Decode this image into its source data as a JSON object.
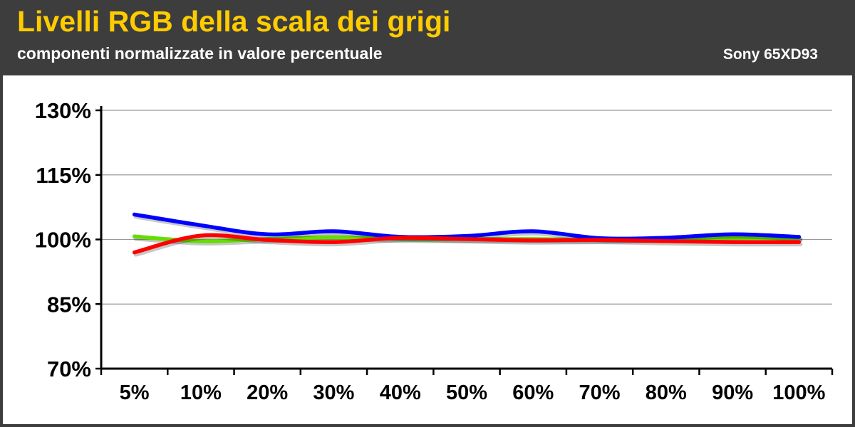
{
  "header": {
    "title": "Livelli RGB della scala dei grigi",
    "subtitle": "componenti normalizzate in valore percentuale",
    "model": "Sony 65XD93"
  },
  "colors": {
    "header_bg": "#3d3d3d",
    "title": "#ffcc00",
    "red": "#ff0000",
    "green": "#66dd00",
    "blue": "#0000ff",
    "grid": "#999999"
  },
  "chart_data": {
    "type": "line",
    "title": "Livelli RGB della scala dei grigi",
    "subtitle": "componenti normalizzate in valore percentuale",
    "xlabel": "",
    "ylabel": "",
    "categories": [
      "5%",
      "10%",
      "20%",
      "30%",
      "40%",
      "50%",
      "60%",
      "70%",
      "80%",
      "90%",
      "100%"
    ],
    "yticks": [
      "130%",
      "115%",
      "100%",
      "85%",
      "70%"
    ],
    "ylim": [
      70,
      130
    ],
    "grid": true,
    "legend": "none",
    "series": [
      {
        "color": "#66dd00",
        "values": [
          100.7,
          99.6,
          100.1,
          100.5,
          100.2,
          100.1,
          100.1,
          100.0,
          100.2,
          100.4,
          100.3
        ]
      },
      {
        "color": "#0000ff",
        "values": [
          105.8,
          103.3,
          101.2,
          101.9,
          100.6,
          100.8,
          101.9,
          100.3,
          100.4,
          101.2,
          100.6
        ]
      },
      {
        "color": "#ff0000",
        "values": [
          97.0,
          100.9,
          99.9,
          99.4,
          100.4,
          100.1,
          99.8,
          99.9,
          99.6,
          99.4,
          99.4
        ]
      }
    ]
  }
}
